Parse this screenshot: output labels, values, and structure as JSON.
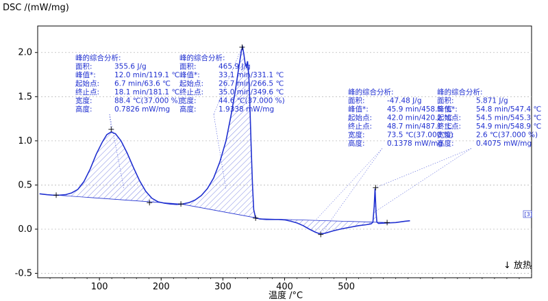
{
  "chart_data": {
    "type": "line",
    "ylabel": "DSC /(mW/mg)",
    "xlabel": "温度 /°C",
    "exo_label": "↓ 放热",
    "corner_mark": "[3]",
    "xlim": [
      0,
      800
    ],
    "ylim": [
      -0.55,
      2.3
    ],
    "x_ticks": [
      100,
      200,
      300,
      400,
      500
    ],
    "y_ticks": [
      -0.5,
      0.0,
      0.5,
      1.0,
      1.5,
      2.0
    ],
    "curve_color": "#1f2fd0",
    "series": [
      {
        "values": [
          [
            3,
            0.4
          ],
          [
            15,
            0.39
          ],
          [
            25,
            0.385
          ],
          [
            35,
            0.385
          ],
          [
            45,
            0.39
          ],
          [
            55,
            0.41
          ],
          [
            65,
            0.45
          ],
          [
            75,
            0.54
          ],
          [
            85,
            0.68
          ],
          [
            95,
            0.85
          ],
          [
            105,
            0.99
          ],
          [
            112,
            1.07
          ],
          [
            119,
            1.1
          ],
          [
            126,
            1.08
          ],
          [
            135,
            1.0
          ],
          [
            145,
            0.86
          ],
          [
            155,
            0.7
          ],
          [
            165,
            0.55
          ],
          [
            175,
            0.43
          ],
          [
            185,
            0.35
          ],
          [
            195,
            0.31
          ],
          [
            205,
            0.295
          ],
          [
            215,
            0.285
          ],
          [
            225,
            0.28
          ],
          [
            235,
            0.285
          ],
          [
            245,
            0.3
          ],
          [
            255,
            0.33
          ],
          [
            265,
            0.38
          ],
          [
            275,
            0.46
          ],
          [
            285,
            0.58
          ],
          [
            295,
            0.76
          ],
          [
            305,
            1.0
          ],
          [
            313,
            1.28
          ],
          [
            320,
            1.56
          ],
          [
            326,
            1.84
          ],
          [
            330,
            2.02
          ],
          [
            332,
            2.06
          ],
          [
            334,
            1.98
          ],
          [
            336,
            1.88
          ],
          [
            338,
            1.84
          ],
          [
            340,
            1.9
          ],
          [
            342,
            1.74
          ],
          [
            344,
            1.35
          ],
          [
            346,
            0.9
          ],
          [
            348,
            0.5
          ],
          [
            350,
            0.22
          ],
          [
            353,
            0.13
          ],
          [
            360,
            0.115
          ],
          [
            370,
            0.11
          ],
          [
            380,
            0.11
          ],
          [
            390,
            0.11
          ],
          [
            400,
            0.105
          ],
          [
            410,
            0.09
          ],
          [
            420,
            0.07
          ],
          [
            430,
            0.04
          ],
          [
            440,
            0.0
          ],
          [
            450,
            -0.035
          ],
          [
            458,
            -0.055
          ],
          [
            466,
            -0.045
          ],
          [
            478,
            -0.02
          ],
          [
            490,
            0.0
          ],
          [
            505,
            0.02
          ],
          [
            520,
            0.04
          ],
          [
            532,
            0.05
          ],
          [
            540,
            0.06
          ],
          [
            543,
            0.08
          ],
          [
            545,
            0.25
          ],
          [
            546.5,
            0.46
          ],
          [
            548,
            0.2
          ],
          [
            549.5,
            0.08
          ],
          [
            552,
            0.065
          ],
          [
            565,
            0.07
          ],
          [
            580,
            0.075
          ],
          [
            595,
            0.09
          ],
          [
            603,
            0.095
          ]
        ]
      }
    ],
    "baselines": [
      {
        "from": [
          30,
          0.385
        ],
        "to": [
          232,
          0.285
        ]
      },
      {
        "from": [
          232,
          0.285
        ],
        "to": [
          352,
          0.13
        ]
      },
      {
        "from": [
          353,
          0.12
        ],
        "to": [
          566,
          0.075
        ]
      }
    ],
    "markers": [
      [
        30,
        0.385
      ],
      [
        119.1,
        1.13
      ],
      [
        181.1,
        0.3
      ],
      [
        232,
        0.285
      ],
      [
        331.1,
        2.06
      ],
      [
        353,
        0.125
      ],
      [
        458.5,
        -0.06
      ],
      [
        547.4,
        0.47
      ],
      [
        566,
        0.075
      ]
    ],
    "annotations": [
      {
        "lines": [
          "峰的综合分析:",
          "面积:",
          "峰值*:",
          "起始点:",
          "终止点:",
          "宽度:",
          "高度:"
        ],
        "values": [
          "",
          "355.6 J/g",
          "12.0 min/119.1 ℃",
          "6.7 min/63.6 ℃",
          "18.1 min/181.1 ℃",
          "88.4 ℃(37.000 %)",
          "0.7826 mW/mg"
        ],
        "points_to": [
          [
            119,
            1.13
          ],
          [
            140,
            0.45
          ]
        ]
      },
      {
        "lines": [
          "峰的综合分析:",
          "面积:",
          "峰值*:",
          "起始点:",
          "终止点:",
          "宽度:",
          "高度:"
        ],
        "values": [
          "",
          "465.9 J/g",
          "33.1 min/331.1 ℃",
          "26.7 min/266.5 ℃",
          "35.0 min/349.6 ℃",
          "44.6 ℃(37.000 %)",
          "1.9338 mW/mg"
        ],
        "points_to": [
          [
            331,
            2.06
          ],
          [
            305,
            0.45
          ]
        ]
      },
      {
        "lines": [
          "峰的综合分析:",
          "面积:",
          "峰值*:",
          "起始点:",
          "终止点:",
          "宽度:",
          "高度:"
        ],
        "values": [
          "",
          "-47.48 J/g",
          "45.9 min/458.5 ℃",
          "42.0 min/420.2 ℃",
          "48.7 min/487.1 ℃",
          "73.5 ℃(37.000 %)",
          "0.1378 mW/mg"
        ],
        "points_to": [
          [
            458.5,
            -0.06
          ],
          [
            450,
            0.1
          ]
        ]
      },
      {
        "lines": [
          "峰的综合分析:",
          "面积:",
          "峰值*:",
          "起始点:",
          "终止点:",
          "宽度:",
          "高度:"
        ],
        "values": [
          "",
          "5.871 J/g",
          "54.8 min/547.4 ℃",
          "54.5 min/545.3 ℃",
          "54.9 min/548.9 ℃",
          "2.6 ℃(37.000 %)",
          "0.4075 mW/mg"
        ],
        "points_to": [
          [
            547.4,
            0.47
          ],
          [
            547,
            0.2
          ]
        ]
      }
    ]
  }
}
